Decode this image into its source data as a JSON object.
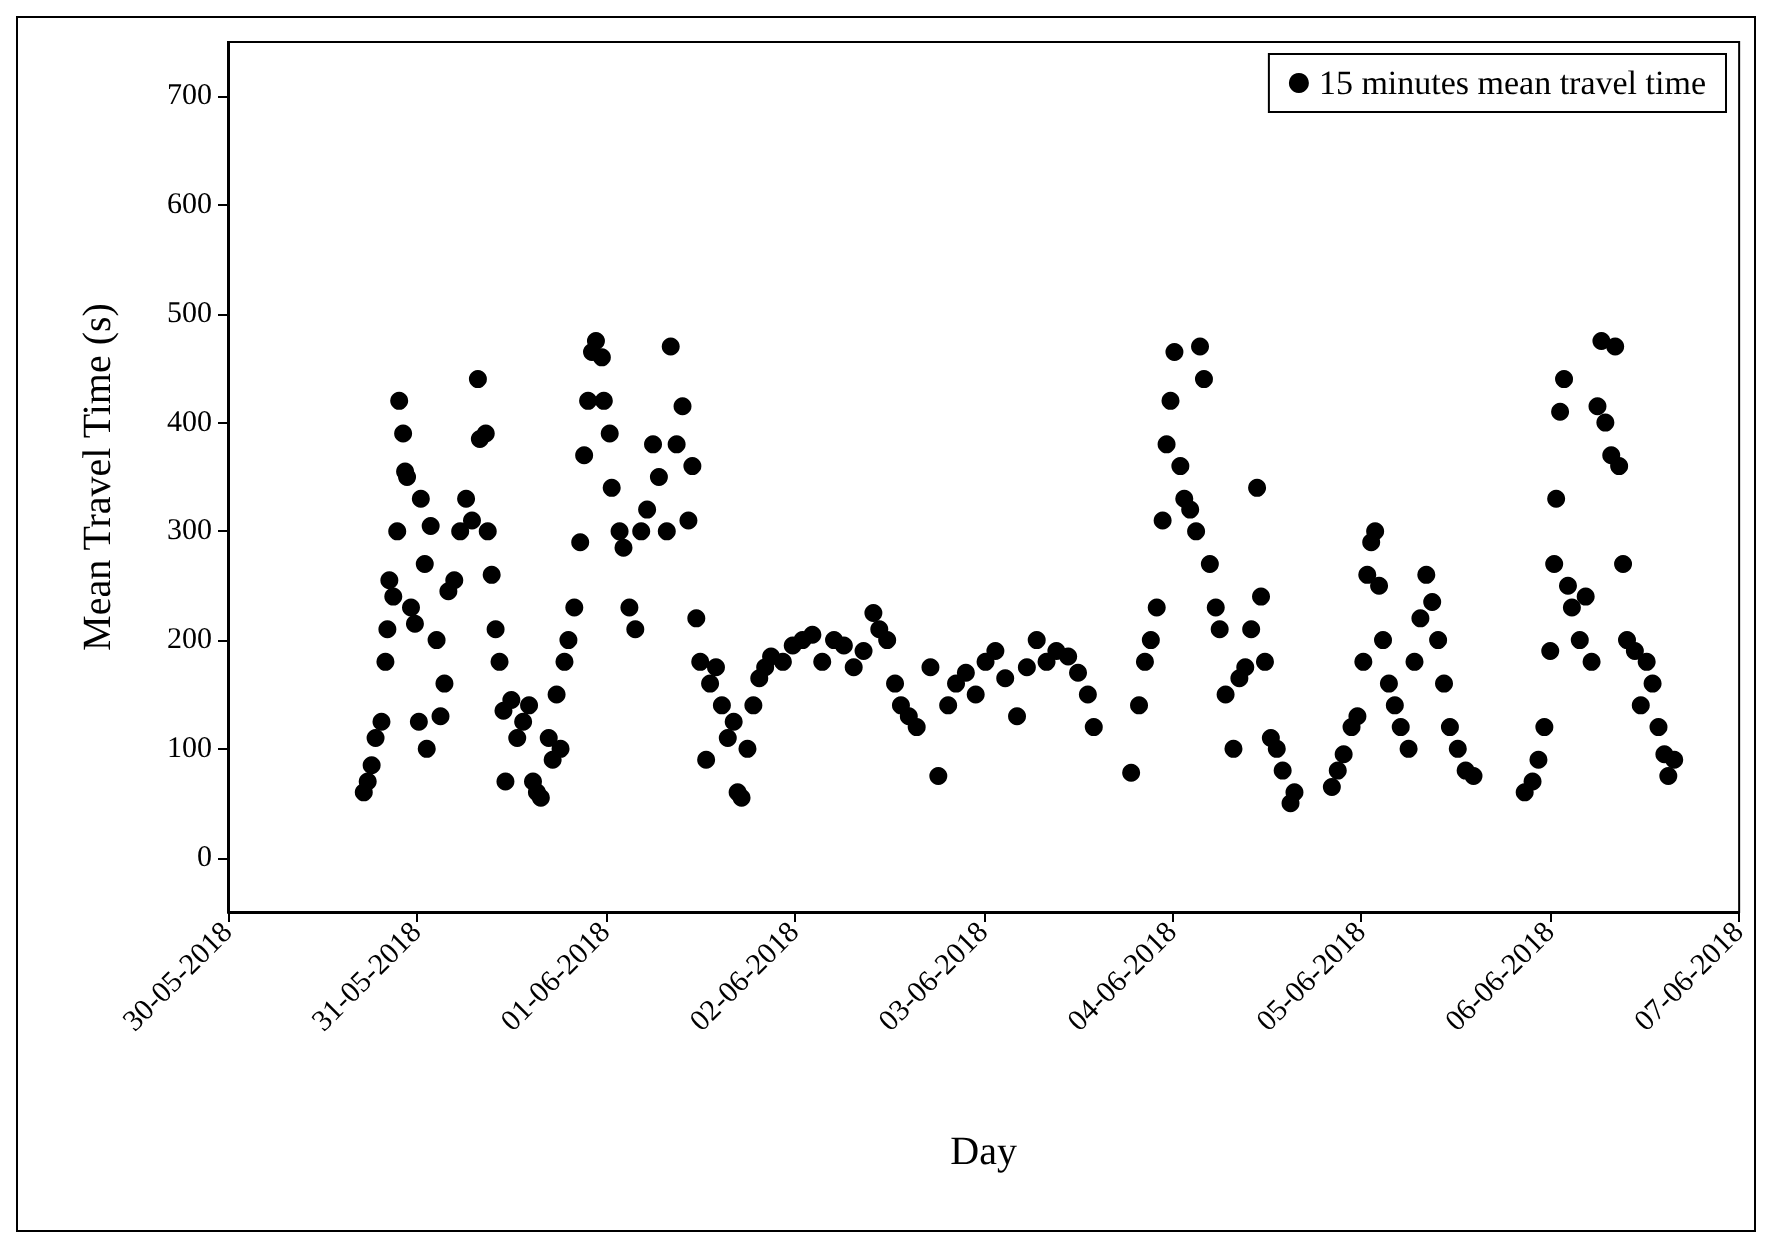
{
  "chart_data": {
    "type": "scatter",
    "xlabel": "Day",
    "ylabel": "Mean Travel Time (s)",
    "legend": "top right",
    "marker": "circle",
    "grid": false,
    "xlim": [
      "2018-05-30",
      "2018-06-07"
    ],
    "xticks": [
      {
        "value": "2018-05-30",
        "label": "30-05-2018"
      },
      {
        "value": "2018-05-31",
        "label": "31-05-2018"
      },
      {
        "value": "2018-06-01",
        "label": "01-06-2018"
      },
      {
        "value": "2018-06-02",
        "label": "02-06-2018"
      },
      {
        "value": "2018-06-03",
        "label": "03-06-2018"
      },
      {
        "value": "2018-06-04",
        "label": "04-06-2018"
      },
      {
        "value": "2018-06-05",
        "label": "05-06-2018"
      },
      {
        "value": "2018-06-06",
        "label": "06-06-2018"
      },
      {
        "value": "2018-06-07",
        "label": "07-06-2018"
      }
    ],
    "ylim": [
      -50,
      750
    ],
    "yticks": [
      0,
      100,
      200,
      300,
      400,
      500,
      600,
      700
    ],
    "series": [
      {
        "name": "15 minutes mean travel time",
        "color": "#000000",
        "x": [
          "2018-05-30T17:15",
          "2018-05-30T17:45",
          "2018-05-30T18:15",
          "2018-05-30T18:45",
          "2018-05-30T19:30",
          "2018-05-30T20:00",
          "2018-05-30T20:15",
          "2018-05-30T20:30",
          "2018-05-30T21:00",
          "2018-05-30T21:30",
          "2018-05-30T21:45",
          "2018-05-30T22:15",
          "2018-05-30T22:30",
          "2018-05-30T22:45",
          "2018-05-30T23:15",
          "2018-05-30T23:45",
          "2018-05-31T00:15",
          "2018-05-31T00:30",
          "2018-05-31T01:00",
          "2018-05-31T01:15",
          "2018-05-31T01:45",
          "2018-05-31T02:30",
          "2018-05-31T03:00",
          "2018-05-31T03:30",
          "2018-05-31T04:00",
          "2018-05-31T04:45",
          "2018-05-31T05:30",
          "2018-05-31T06:15",
          "2018-05-31T07:00",
          "2018-05-31T07:45",
          "2018-05-31T08:00",
          "2018-05-31T08:45",
          "2018-05-31T09:00",
          "2018-05-31T09:30",
          "2018-05-31T10:00",
          "2018-05-31T10:30",
          "2018-05-31T11:00",
          "2018-05-31T11:15",
          "2018-05-31T12:00",
          "2018-05-31T12:45",
          "2018-05-31T13:30",
          "2018-05-31T14:15",
          "2018-05-31T14:45",
          "2018-05-31T15:15",
          "2018-05-31T15:45",
          "2018-05-31T16:45",
          "2018-05-31T17:15",
          "2018-05-31T17:45",
          "2018-05-31T18:15",
          "2018-05-31T18:45",
          "2018-05-31T19:15",
          "2018-05-31T20:00",
          "2018-05-31T20:45",
          "2018-05-31T21:15",
          "2018-05-31T21:45",
          "2018-05-31T22:15",
          "2018-05-31T22:45",
          "2018-05-31T23:30",
          "2018-05-31T23:45",
          "2018-06-01T00:30",
          "2018-06-01T00:45",
          "2018-06-01T01:45",
          "2018-06-01T02:15",
          "2018-06-01T03:00",
          "2018-06-01T03:45",
          "2018-06-01T04:30",
          "2018-06-01T05:15",
          "2018-06-01T06:00",
          "2018-06-01T06:45",
          "2018-06-01T07:45",
          "2018-06-01T08:15",
          "2018-06-01T09:00",
          "2018-06-01T09:45",
          "2018-06-01T10:30",
          "2018-06-01T11:00",
          "2018-06-01T11:30",
          "2018-06-01T12:00",
          "2018-06-01T12:45",
          "2018-06-01T13:15",
          "2018-06-01T14:00",
          "2018-06-01T14:45",
          "2018-06-01T15:30",
          "2018-06-01T16:15",
          "2018-06-01T16:45",
          "2018-06-01T17:15",
          "2018-06-01T18:00",
          "2018-06-01T18:45",
          "2018-06-01T19:30",
          "2018-06-01T20:15",
          "2018-06-01T21:00",
          "2018-06-01T22:30",
          "2018-06-01T23:45",
          "2018-06-02T01:00",
          "2018-06-02T02:15",
          "2018-06-02T03:30",
          "2018-06-02T05:00",
          "2018-06-02T06:15",
          "2018-06-02T07:30",
          "2018-06-02T08:45",
          "2018-06-02T10:00",
          "2018-06-02T10:45",
          "2018-06-02T11:45",
          "2018-06-02T12:45",
          "2018-06-02T13:30",
          "2018-06-02T14:30",
          "2018-06-02T15:30",
          "2018-06-02T17:15",
          "2018-06-02T18:15",
          "2018-06-02T19:30",
          "2018-06-02T20:30",
          "2018-06-02T21:45",
          "2018-06-02T23:00",
          "2018-06-03T00:15",
          "2018-06-03T01:30",
          "2018-06-03T02:45",
          "2018-06-03T04:15",
          "2018-06-03T05:30",
          "2018-06-03T06:45",
          "2018-06-03T08:00",
          "2018-06-03T09:15",
          "2018-06-03T10:45",
          "2018-06-03T12:00",
          "2018-06-03T13:15",
          "2018-06-03T14:00",
          "2018-06-03T18:45",
          "2018-06-03T19:45",
          "2018-06-03T20:30",
          "2018-06-03T21:15",
          "2018-06-03T22:00",
          "2018-06-03T22:45",
          "2018-06-03T23:15",
          "2018-06-03T23:45",
          "2018-06-04T00:15",
          "2018-06-04T01:00",
          "2018-06-04T01:30",
          "2018-06-04T02:15",
          "2018-06-04T03:00",
          "2018-06-04T03:30",
          "2018-06-04T04:00",
          "2018-06-04T04:45",
          "2018-06-04T05:30",
          "2018-06-04T06:00",
          "2018-06-04T06:45",
          "2018-06-04T07:45",
          "2018-06-04T08:30",
          "2018-06-04T09:15",
          "2018-06-04T10:00",
          "2018-06-04T10:45",
          "2018-06-04T11:15",
          "2018-06-04T11:45",
          "2018-06-04T12:30",
          "2018-06-04T13:15",
          "2018-06-04T14:00",
          "2018-06-04T15:00",
          "2018-06-04T15:30",
          "2018-06-04T20:15",
          "2018-06-04T21:00",
          "2018-06-04T21:45",
          "2018-06-04T22:45",
          "2018-06-04T23:30",
          "2018-06-05T00:15",
          "2018-06-05T00:45",
          "2018-06-05T01:15",
          "2018-06-05T01:45",
          "2018-06-05T02:15",
          "2018-06-05T02:45",
          "2018-06-05T03:30",
          "2018-06-05T04:15",
          "2018-06-05T05:00",
          "2018-06-05T06:00",
          "2018-06-05T06:45",
          "2018-06-05T07:30",
          "2018-06-05T08:15",
          "2018-06-05T09:00",
          "2018-06-05T09:45",
          "2018-06-05T10:30",
          "2018-06-05T11:15",
          "2018-06-05T12:15",
          "2018-06-05T13:15",
          "2018-06-05T14:15",
          "2018-06-05T20:45",
          "2018-06-05T21:45",
          "2018-06-05T22:30",
          "2018-06-05T23:15",
          "2018-06-06T00:00",
          "2018-06-06T00:30",
          "2018-06-06T00:45",
          "2018-06-06T01:15",
          "2018-06-06T01:45",
          "2018-06-06T02:15",
          "2018-06-06T02:45",
          "2018-06-06T03:45",
          "2018-06-06T04:30",
          "2018-06-06T05:15",
          "2018-06-06T06:00",
          "2018-06-06T06:30",
          "2018-06-06T07:00",
          "2018-06-06T07:45",
          "2018-06-06T08:15",
          "2018-06-06T08:45",
          "2018-06-06T09:15",
          "2018-06-06T09:45",
          "2018-06-06T10:45",
          "2018-06-06T11:30",
          "2018-06-06T12:15",
          "2018-06-06T13:00",
          "2018-06-06T13:45",
          "2018-06-06T14:30",
          "2018-06-06T15:00",
          "2018-06-06T15:45"
        ],
        "values": [
          60,
          70,
          85,
          110,
          125,
          180,
          210,
          255,
          240,
          300,
          420,
          390,
          355,
          350,
          230,
          215,
          125,
          330,
          270,
          100,
          305,
          200,
          130,
          160,
          245,
          255,
          300,
          330,
          310,
          440,
          385,
          390,
          300,
          260,
          210,
          180,
          135,
          70,
          145,
          110,
          125,
          140,
          70,
          60,
          55,
          110,
          90,
          150,
          100,
          180,
          200,
          230,
          290,
          370,
          420,
          465,
          475,
          460,
          420,
          390,
          340,
          300,
          285,
          230,
          210,
          300,
          320,
          380,
          350,
          300,
          470,
          380,
          415,
          310,
          360,
          220,
          180,
          90,
          160,
          175,
          140,
          110,
          125,
          60,
          55,
          100,
          140,
          165,
          175,
          185,
          180,
          195,
          200,
          205,
          180,
          200,
          195,
          175,
          190,
          225,
          210,
          200,
          160,
          140,
          130,
          120,
          175,
          75,
          140,
          160,
          170,
          150,
          180,
          190,
          165,
          130,
          175,
          200,
          180,
          190,
          185,
          170,
          150,
          120,
          78,
          140,
          180,
          200,
          230,
          310,
          380,
          420,
          465,
          360,
          330,
          320,
          300,
          470,
          440,
          270,
          230,
          210,
          150,
          100,
          165,
          175,
          210,
          340,
          240,
          180,
          110,
          100,
          80,
          50,
          60,
          65,
          80,
          95,
          120,
          130,
          180,
          260,
          290,
          300,
          250,
          200,
          160,
          140,
          120,
          100,
          180,
          220,
          260,
          235,
          200,
          160,
          120,
          100,
          80,
          75,
          60,
          70,
          90,
          120,
          190,
          270,
          330,
          410,
          440,
          250,
          230,
          200,
          240,
          180,
          415,
          475,
          400,
          370,
          470,
          360,
          270,
          200,
          190,
          140,
          180,
          160,
          120,
          95,
          75,
          90
        ]
      }
    ]
  }
}
